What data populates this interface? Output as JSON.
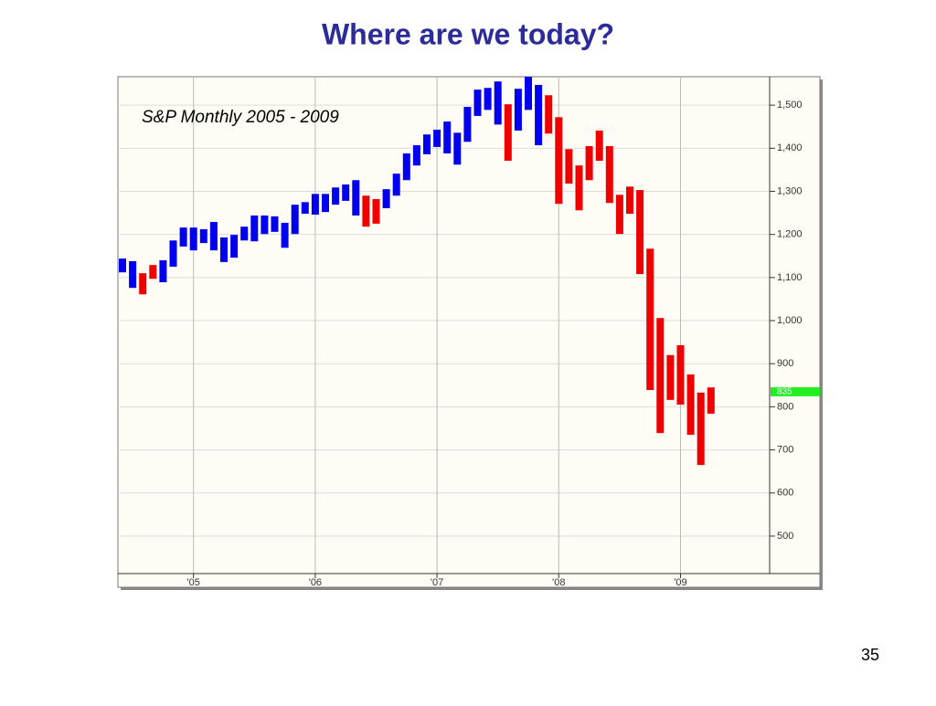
{
  "chart_data": {
    "type": "range-bar",
    "title": "Where are we today?",
    "annotation": "S&P Monthly 2005 - 2009",
    "categories": [
      null,
      null,
      null,
      null,
      null,
      null,
      null,
      "'05",
      null,
      null,
      null,
      null,
      null,
      null,
      null,
      null,
      null,
      null,
      null,
      "'06",
      null,
      null,
      null,
      null,
      null,
      null,
      null,
      null,
      null,
      null,
      null,
      "'07",
      null,
      null,
      null,
      null,
      null,
      null,
      null,
      null,
      null,
      null,
      null,
      "'08",
      null,
      null,
      null,
      null,
      null,
      null,
      null,
      null,
      null,
      null,
      null,
      "'09",
      null,
      null,
      null
    ],
    "low": [
      1112,
      1076,
      1061,
      1097,
      1089,
      1125,
      1172,
      1163,
      1180,
      1163,
      1136,
      1146,
      1186,
      1184,
      1201,
      1206,
      1169,
      1201,
      1248,
      1246,
      1252,
      1269,
      1278,
      1244,
      1218,
      1225,
      1261,
      1290,
      1326,
      1360,
      1386,
      1403,
      1388,
      1362,
      1415,
      1475,
      1489,
      1455,
      1371,
      1441,
      1489,
      1407,
      1434,
      1271,
      1318,
      1256,
      1326,
      1371,
      1273,
      1201,
      1248,
      1108,
      839,
      739,
      816,
      805,
      735,
      665,
      784
    ],
    "high": [
      1144,
      1138,
      1110,
      1129,
      1140,
      1186,
      1216,
      1216,
      1212,
      1229,
      1193,
      1199,
      1218,
      1244,
      1244,
      1242,
      1227,
      1269,
      1275,
      1294,
      1294,
      1309,
      1316,
      1326,
      1290,
      1282,
      1305,
      1341,
      1388,
      1407,
      1432,
      1443,
      1462,
      1436,
      1496,
      1536,
      1540,
      1555,
      1502,
      1538,
      1566,
      1547,
      1523,
      1472,
      1398,
      1360,
      1405,
      1441,
      1405,
      1292,
      1311,
      1303,
      1167,
      1006,
      920,
      943,
      875,
      833,
      845
    ],
    "colors": [
      "#0000ee",
      "#0000ee",
      "#ee0000",
      "#ee0000",
      "#0000ee",
      "#0000ee",
      "#0000ee",
      "#0000ee",
      "#0000ee",
      "#0000ee",
      "#0000ee",
      "#0000ee",
      "#0000ee",
      "#0000ee",
      "#0000ee",
      "#0000ee",
      "#0000ee",
      "#0000ee",
      "#0000ee",
      "#0000ee",
      "#0000ee",
      "#0000ee",
      "#0000ee",
      "#0000ee",
      "#ee0000",
      "#ee0000",
      "#0000ee",
      "#0000ee",
      "#0000ee",
      "#0000ee",
      "#0000ee",
      "#0000ee",
      "#0000ee",
      "#0000ee",
      "#0000ee",
      "#0000ee",
      "#0000ee",
      "#0000ee",
      "#ee0000",
      "#0000ee",
      "#0000ee",
      "#0000ee",
      "#ee0000",
      "#ee0000",
      "#ee0000",
      "#ee0000",
      "#ee0000",
      "#ee0000",
      "#ee0000",
      "#ee0000",
      "#ee0000",
      "#ee0000",
      "#ee0000",
      "#ee0000",
      "#ee0000",
      "#ee0000",
      "#ee0000",
      "#ee0000",
      "#ee0000"
    ],
    "ylim": [
      413,
      1566
    ],
    "yticks": [
      500,
      600,
      700,
      800,
      900,
      {
        "value": 1000,
        "label": "1,000"
      },
      {
        "value": 1100,
        "label": "1,100"
      },
      {
        "value": 1200,
        "label": "1,200"
      },
      {
        "value": 1300,
        "label": "1,300"
      },
      {
        "value": 1400,
        "label": "1,400"
      },
      {
        "value": 1500,
        "label": "1,500"
      }
    ],
    "last_value": 835,
    "last_color": "#22ee22",
    "grid": true
  },
  "page_number": "35"
}
